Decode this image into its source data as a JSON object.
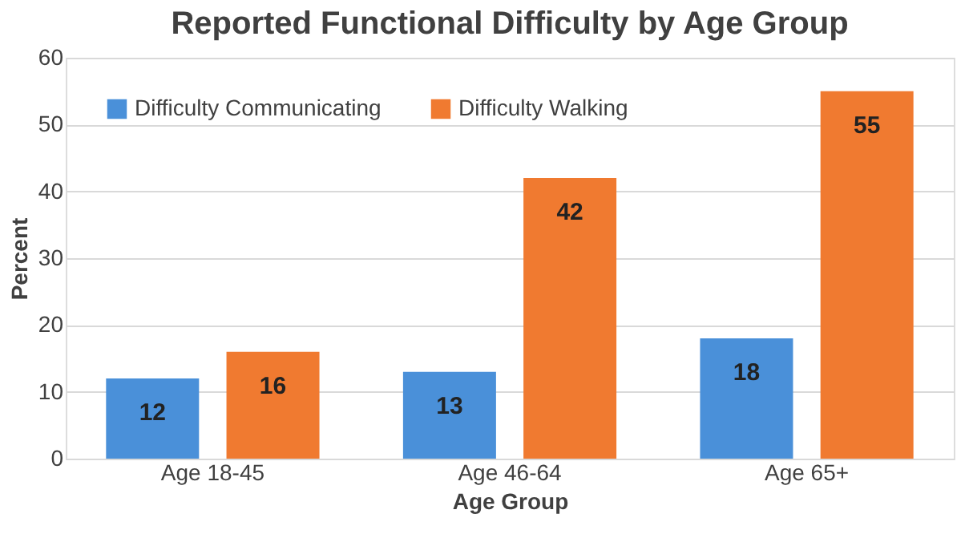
{
  "chart_data": {
    "type": "bar",
    "title": "Reported Functional Difficulty by Age Group",
    "xlabel": "Age Group",
    "ylabel": "Percent",
    "categories": [
      "Age 18-45",
      "Age 46-64",
      "Age 65+"
    ],
    "series": [
      {
        "name": "Difficulty Communicating",
        "color": "#4a90d9",
        "values": [
          12,
          13,
          18
        ]
      },
      {
        "name": "Difficulty Walking",
        "color": "#f07a30",
        "values": [
          16,
          42,
          55
        ]
      }
    ],
    "ylim": [
      0,
      60
    ],
    "yticks": [
      0,
      10,
      20,
      30,
      40,
      50,
      60
    ],
    "grid": "y",
    "legend": "top left",
    "data_labels": true
  }
}
